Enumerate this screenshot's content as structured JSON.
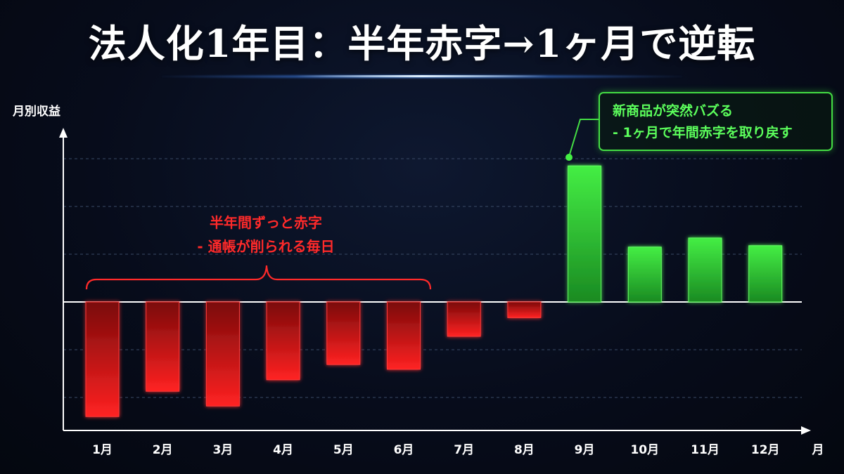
{
  "title": "法人化1年目：半年赤字→1ヶ月で逆転",
  "colors": {
    "negative": "#ff2a2a",
    "positive": "#33dd33",
    "axis": "#ffffff",
    "background": "#070c1b"
  },
  "annotations": {
    "red_line1": "半年間ずっと赤字",
    "red_line2": "- 通帳が削られる毎日",
    "green_line1": "新商品が突然バズる",
    "green_line2": "- 1ヶ月で年間赤字を取り戻す"
  },
  "chart_data": {
    "type": "bar",
    "ylabel": "月別収益",
    "xlabel": "月",
    "categories": [
      "1月",
      "2月",
      "3月",
      "4月",
      "5月",
      "6月",
      "7月",
      "8月",
      "9月",
      "10月",
      "11月",
      "12月"
    ],
    "values": [
      -2.4,
      -1.87,
      -2.18,
      -1.63,
      -1.31,
      -1.41,
      -0.72,
      -0.33,
      2.85,
      1.15,
      1.34,
      1.18
    ],
    "ylim": [
      -2.7,
      3.2
    ],
    "grid": true,
    "grid_values": [
      -2,
      -1,
      1,
      2,
      3
    ]
  }
}
